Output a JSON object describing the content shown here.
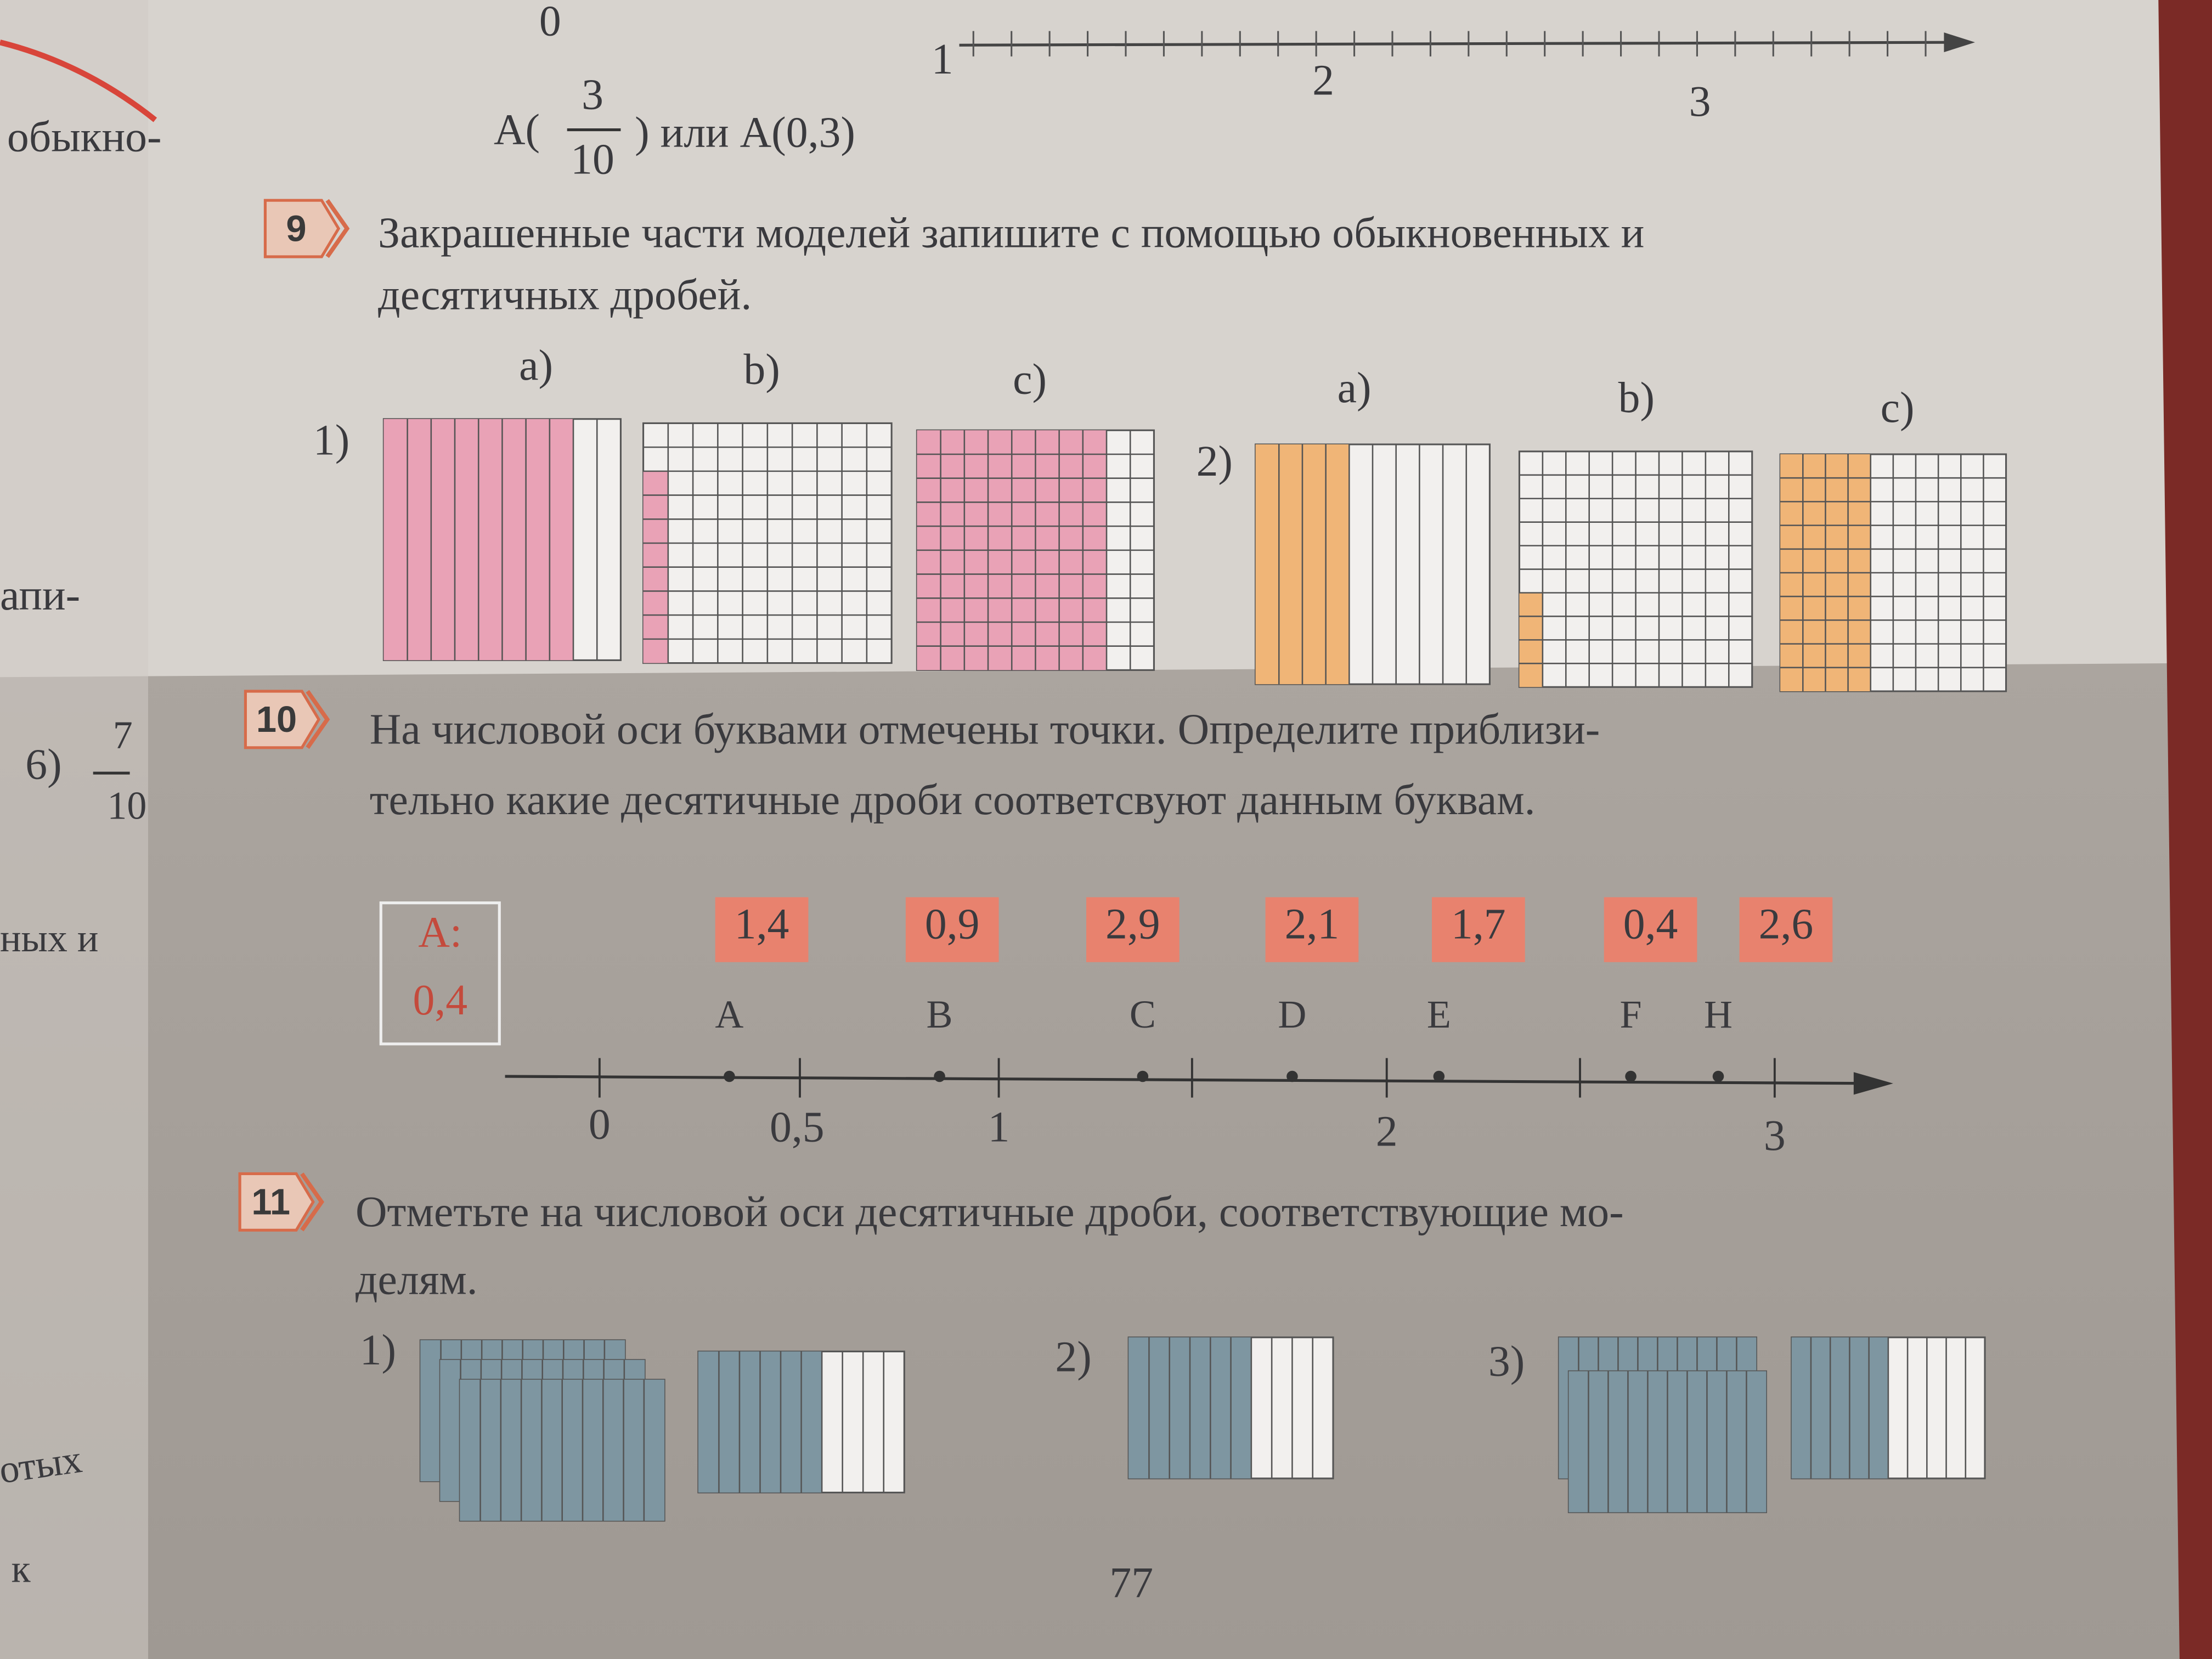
{
  "top_fragment": {
    "axis_labels": [
      "0",
      "1",
      "2",
      "3"
    ],
    "example": {
      "prefix": "A(",
      "numerator": "3",
      "denominator": "10",
      "suffix": ") или  A(0,3)"
    }
  },
  "margin": {
    "texts": [
      "обыкно-",
      "апи-",
      "6)",
      "7",
      "10",
      "ных и",
      "отых",
      "к"
    ]
  },
  "exercise_9": {
    "number": "9",
    "lines": [
      "Закрашенные части моделей запишите с помощью обыкновенных и",
      "десятичных дробей."
    ],
    "group_labels": [
      "1)",
      "2)"
    ],
    "item_labels": [
      "a)",
      "b)",
      "c)",
      "a)",
      "b)",
      "c)"
    ]
  },
  "exercise_10": {
    "number": "10",
    "lines": [
      "На числовой оси буквами отмечены точки. Определите приблизи-",
      "тельно какие десятичные дроби  соответсвуют данным буквам."
    ],
    "example_box": {
      "label": "A:",
      "value": "0,4"
    },
    "answers": [
      "1,4",
      "0,9",
      "2,9",
      "2,1",
      "1,7",
      "0,4",
      "2,6"
    ],
    "points": [
      "A",
      "B",
      "C",
      "D",
      "E",
      "F",
      "H"
    ],
    "axis_labels": [
      "0",
      "0,5",
      "1",
      "2",
      "3"
    ]
  },
  "exercise_11": {
    "number": "11",
    "lines": [
      "Отметьте на числовой оси  десятичные дроби, соответствующие мо-",
      "делям."
    ],
    "item_labels": [
      "1)",
      "2)",
      "3)"
    ]
  },
  "page_number": "77"
}
